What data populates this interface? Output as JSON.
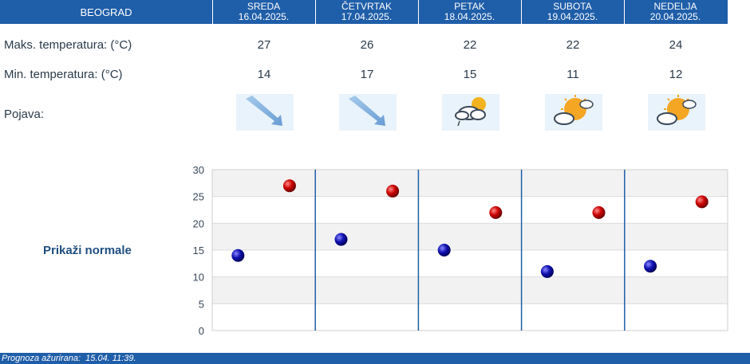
{
  "header": {
    "city": "BEOGRAD"
  },
  "days": [
    {
      "name": "SREDA",
      "date": "16.04.2025.",
      "max": "27",
      "min": "14",
      "icon": "sleet-icon",
      "max_value": 27,
      "min_value": 14
    },
    {
      "name": "ČETVRTAK",
      "date": "17.04.2025.",
      "max": "26",
      "min": "17",
      "icon": "sleet-icon",
      "max_value": 26,
      "min_value": 17
    },
    {
      "name": "PETAK",
      "date": "18.04.2025.",
      "max": "22",
      "min": "15",
      "icon": "cloud-sun-rain-icon",
      "max_value": 22,
      "min_value": 15
    },
    {
      "name": "SUBOTA",
      "date": "19.04.2025.",
      "max": "22",
      "min": "11",
      "icon": "sun-cloud-icon",
      "max_value": 22,
      "min_value": 11
    },
    {
      "name": "NEDELJA",
      "date": "20.04.2025.",
      "max": "24",
      "min": "12",
      "icon": "sun-cloud-icon",
      "max_value": 24,
      "min_value": 12
    }
  ],
  "labels": {
    "max_temp": "Maks. temperatura: (°C)",
    "min_temp": "Min. temperatura: (°C)",
    "phenomenon": "Pojava:",
    "show_normals": "Prikaži normale"
  },
  "chart_data": {
    "type": "scatter",
    "categories": [
      "16.04.2025.",
      "17.04.2025.",
      "18.04.2025.",
      "19.04.2025.",
      "20.04.2025."
    ],
    "series": [
      {
        "values": [
          27,
          26,
          22,
          22,
          24
        ],
        "color": "#cc0000"
      },
      {
        "values": [
          14,
          17,
          15,
          11,
          12
        ],
        "color": "#1010b0"
      }
    ],
    "ylim": [
      0,
      30
    ],
    "yticks": [
      "0",
      "5",
      "10",
      "15",
      "20",
      "25",
      "30"
    ],
    "grid": true
  },
  "footer": {
    "updated": "Prognoza ažurirana:  15.04. 11:39."
  },
  "colors": {
    "header_bg": "#1f5ea8",
    "max_dot": "#cc0000",
    "min_dot": "#1010b0"
  }
}
